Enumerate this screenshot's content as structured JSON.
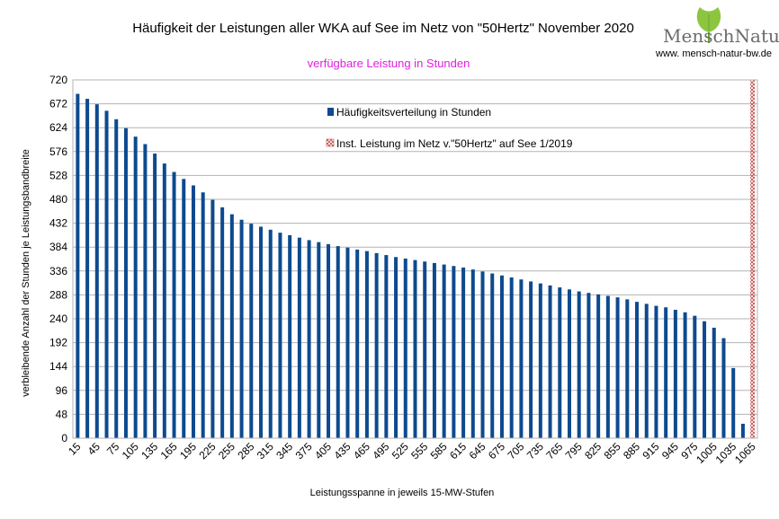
{
  "chart_data": {
    "type": "bar",
    "title": "Häufigkeit der Leistungen aller WKA auf See im Netz von \"50Hertz\" November 2020",
    "subtitle": "verfügbare Leistung in Stunden",
    "xlabel": "Leistungsspanne in jeweils 15-MW-Stufen",
    "ylabel": "verbleibende Anzahl der Stunden je Leistungsbandbreite",
    "ylim": [
      0,
      720
    ],
    "yticks": [
      0,
      48,
      96,
      144,
      192,
      240,
      288,
      336,
      384,
      432,
      480,
      528,
      576,
      624,
      672,
      720
    ],
    "x": [
      15,
      30,
      45,
      60,
      75,
      90,
      105,
      120,
      135,
      150,
      165,
      180,
      195,
      210,
      225,
      240,
      255,
      270,
      285,
      300,
      315,
      330,
      345,
      360,
      375,
      390,
      405,
      420,
      435,
      450,
      465,
      480,
      495,
      510,
      525,
      540,
      555,
      570,
      585,
      600,
      615,
      630,
      645,
      660,
      675,
      690,
      705,
      720,
      735,
      750,
      765,
      780,
      795,
      810,
      825,
      840,
      855,
      870,
      885,
      900,
      915,
      930,
      945,
      960,
      975,
      990,
      1005,
      1020,
      1035,
      1050,
      1065
    ],
    "xtick_labels": [
      "15",
      "45",
      "75",
      "105",
      "135",
      "165",
      "195",
      "225",
      "255",
      "285",
      "315",
      "345",
      "375",
      "405",
      "435",
      "465",
      "495",
      "525",
      "555",
      "585",
      "615",
      "645",
      "675",
      "705",
      "735",
      "765",
      "795",
      "825",
      "855",
      "885",
      "915",
      "945",
      "975",
      "1005",
      "1035",
      "1065"
    ],
    "series": [
      {
        "name": "Häufigkeitsverteilung in Stunden",
        "color": "#0d4a8f",
        "values": [
          692,
          682,
          671,
          658,
          641,
          623,
          606,
          591,
          572,
          552,
          535,
          521,
          508,
          494,
          479,
          464,
          450,
          439,
          431,
          425,
          419,
          413,
          408,
          403,
          398,
          394,
          390,
          386,
          383,
          379,
          376,
          372,
          368,
          364,
          361,
          358,
          355,
          352,
          349,
          346,
          343,
          339,
          335,
          331,
          327,
          323,
          319,
          315,
          311,
          307,
          303,
          299,
          295,
          292,
          289,
          286,
          283,
          279,
          274,
          270,
          266,
          263,
          258,
          253,
          246,
          235,
          222,
          201,
          141,
          29,
          0
        ]
      },
      {
        "name": "Inst. Leistung im Netz v.\"50Hertz\" auf See 1/2019",
        "color": "#c0504d",
        "x_value": 1065
      }
    ],
    "grid": "horizontal",
    "legend_position": "top-center"
  },
  "logo": {
    "brand_left": "Mensch",
    "brand_right": "Natur",
    "url": "www. mensch-natur-bw.de"
  }
}
